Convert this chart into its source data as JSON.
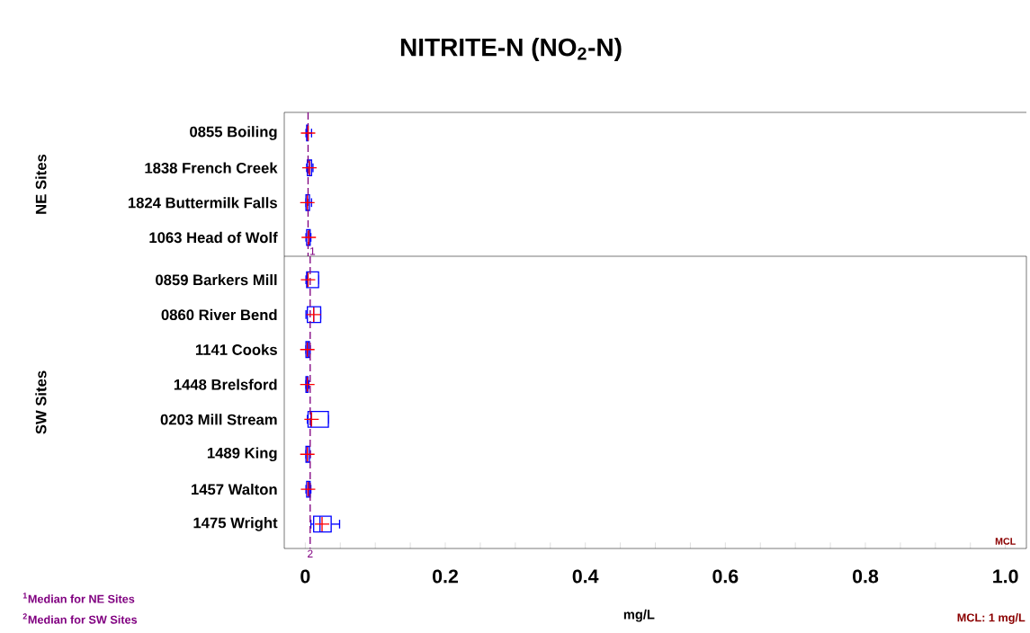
{
  "chart_data": [
    {
      "type": "box",
      "title": "NITRITE-N (NO$_{2}$-N)",
      "ylabel": "NE Sites",
      "orientation": "horizontal",
      "color": "#0000ff",
      "tick_labels": "y",
      "xlim": [
        -0.03,
        1.03
      ],
      "categories": [
        "0855 Boiling",
        "1838 French Creek",
        "1824 Buttermilk Falls",
        "1063 Head of Wolf"
      ],
      "boxes": [
        {
          "low": 0.001,
          "q1": 0.002,
          "median": 0.003,
          "q3": 0.004,
          "high": 0.009,
          "mean": 0.004
        },
        {
          "low": 0.002,
          "q1": 0.003,
          "median": 0.006,
          "q3": 0.009,
          "high": 0.011,
          "mean": 0.006
        },
        {
          "low": 0.001,
          "q1": 0.001,
          "median": 0.003,
          "q3": 0.006,
          "high": 0.009,
          "mean": 0.003
        },
        {
          "low": 0.001,
          "q1": 0.002,
          "median": 0.005,
          "q3": 0.007,
          "high": 0.008,
          "mean": 0.005
        }
      ],
      "ref_lines": [
        {
          "axis": "x",
          "value": 0.004,
          "color": "#800080",
          "line_style": "dashed"
        }
      ],
      "annotations": [
        "1"
      ]
    },
    {
      "type": "box",
      "ylabel": "SW Sites",
      "xlabel": "mg/L",
      "orientation": "horizontal",
      "color": "#0000ff",
      "xlim": [
        -0.03,
        1.03
      ],
      "xticks": [
        0,
        {
          "value": 0.05,
          "label": null
        },
        {
          "value": 0.1,
          "label": null
        },
        {
          "value": 0.15,
          "label": null
        },
        0.2,
        {
          "value": 0.25,
          "label": null
        },
        {
          "value": 0.3,
          "label": null
        },
        {
          "value": 0.35,
          "label": null
        },
        0.4,
        {
          "value": 0.45,
          "label": null
        },
        {
          "value": 0.5,
          "label": null
        },
        {
          "value": 0.55,
          "label": null
        },
        0.6,
        {
          "value": 0.65,
          "label": null
        },
        {
          "value": 0.7,
          "label": null
        },
        {
          "value": 0.75,
          "label": null
        },
        0.8,
        {
          "value": 0.85,
          "label": null
        },
        {
          "value": 0.9,
          "label": null
        },
        {
          "value": 0.95,
          "label": null
        },
        {
          "value": 1.0,
          "label": "1.0"
        }
      ],
      "categories": [
        "0859 Barkers Mill",
        "0860 River Bend",
        "1141 Cooks",
        "1448 Brelsford",
        "0203 Mill Stream",
        "1489 King",
        "1457 Walton",
        "1475 Wright"
      ],
      "boxes": [
        {
          "low": 0.001,
          "q1": 0.002,
          "median": 0.003,
          "q3": 0.019,
          "high": 0.019,
          "mean": 0.004
        },
        {
          "low": 0.001,
          "q1": 0.003,
          "median": 0.012,
          "q3": 0.022,
          "high": 0.022,
          "mean": 0.012
        },
        {
          "low": 0.001,
          "q1": 0.001,
          "median": 0.004,
          "q3": 0.006,
          "high": 0.007,
          "mean": 0.003
        },
        {
          "low": 0.001,
          "q1": 0.001,
          "median": 0.002,
          "q3": 0.004,
          "high": 0.005,
          "mean": 0.003
        },
        {
          "low": 0.003,
          "q1": 0.004,
          "median": 0.008,
          "q3": 0.033,
          "high": 0.033,
          "mean": 0.009
        },
        {
          "low": 0.001,
          "q1": 0.001,
          "median": 0.003,
          "q3": 0.006,
          "high": 0.007,
          "mean": 0.003
        },
        {
          "low": 0.001,
          "q1": 0.002,
          "median": 0.005,
          "q3": 0.007,
          "high": 0.008,
          "mean": 0.004
        },
        {
          "low": 0.008,
          "q1": 0.012,
          "median": 0.021,
          "q3": 0.037,
          "high": 0.049,
          "mean": 0.024
        }
      ],
      "ref_lines": [
        {
          "axis": "x",
          "value": 0.007,
          "color": "#800080",
          "line_style": "dashed"
        }
      ],
      "annotations": [
        "2",
        "$^{1}$Median for NE Sites",
        "$^{2}$Median for SW Sites",
        "MCL",
        "MCL: 1 mg/L"
      ]
    }
  ]
}
